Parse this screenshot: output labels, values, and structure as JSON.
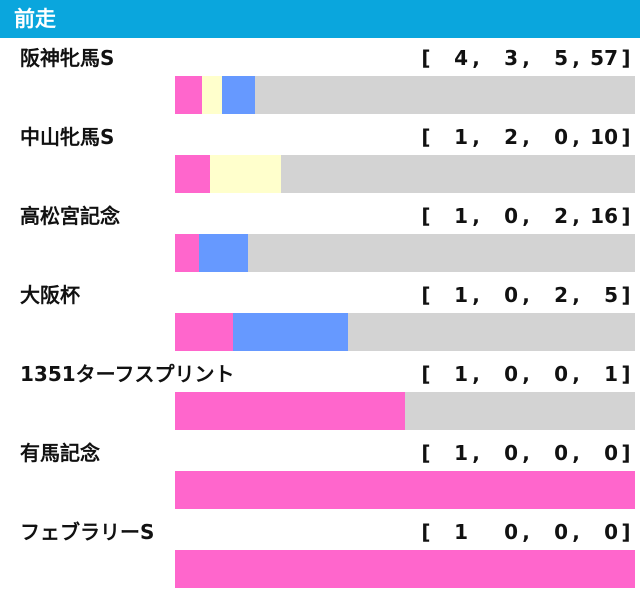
{
  "header": {
    "title": "前走"
  },
  "colors": {
    "header_bg": "#0aa6dd",
    "first": "#ff66cc",
    "second": "#ffffcc",
    "third": "#6699ff",
    "other": "#d3d3d3"
  },
  "chart_data": {
    "type": "bar",
    "stacked": true,
    "orientation": "horizontal",
    "categories": [
      "阪神牝馬S",
      "中山牝馬S",
      "高松宮記念",
      "大阪杯",
      "1351ターフスプリント",
      "有馬記念",
      "フェブラリーS"
    ],
    "records": [
      {
        "open": "[",
        "close": "]",
        "sep": [
          ",",
          ",",
          ","
        ],
        "values": [
          4,
          3,
          5,
          57
        ]
      },
      {
        "open": "[",
        "close": "]",
        "sep": [
          ",",
          ",",
          ","
        ],
        "values": [
          1,
          2,
          0,
          10
        ]
      },
      {
        "open": "[",
        "close": "]",
        "sep": [
          ",",
          ",",
          ","
        ],
        "values": [
          1,
          0,
          2,
          16
        ]
      },
      {
        "open": "[",
        "close": "]",
        "sep": [
          ",",
          ",",
          ","
        ],
        "values": [
          1,
          0,
          2,
          5
        ]
      },
      {
        "open": "[",
        "close": "]",
        "sep": [
          ",",
          ",",
          ","
        ],
        "values": [
          1,
          0,
          0,
          1
        ]
      },
      {
        "open": "[",
        "close": "]",
        "sep": [
          ",",
          ",",
          ","
        ],
        "values": [
          1,
          0,
          0,
          0
        ]
      },
      {
        "open": "[",
        "close": "]",
        "sep": [
          "",
          ",",
          ","
        ],
        "values": [
          1,
          0,
          0,
          0
        ]
      }
    ]
  }
}
